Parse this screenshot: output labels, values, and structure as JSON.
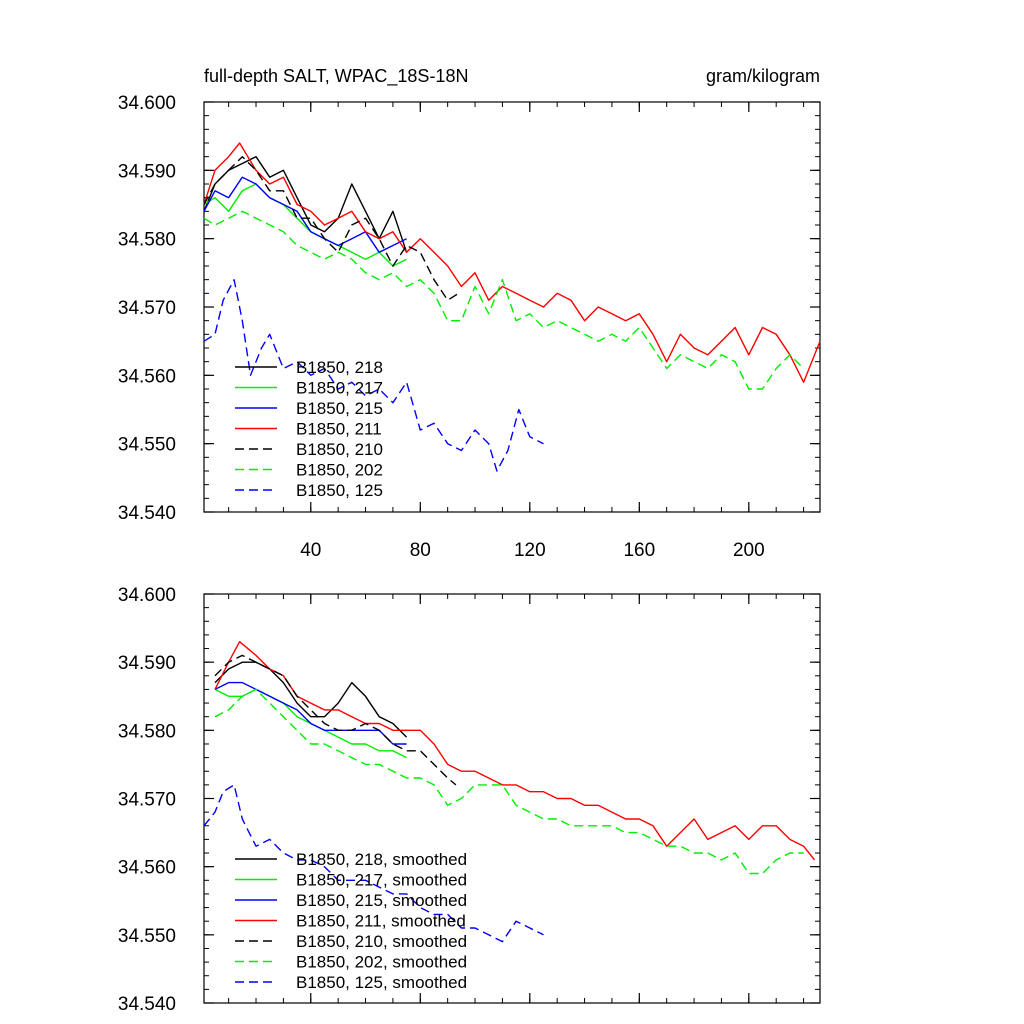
{
  "figure": {
    "title_left": "full-depth SALT, WPAC_18S-18N",
    "title_right": "gram/kilogram"
  },
  "chart_data": [
    {
      "type": "line",
      "title": "full-depth SALT, WPAC_18S-18N",
      "units": "gram/kilogram",
      "xlim": [
        1,
        226
      ],
      "ylim": [
        34.54,
        34.6
      ],
      "x_ticks": [
        40,
        80,
        120,
        160,
        200
      ],
      "x_tick_labels": [
        "40",
        "80",
        "120",
        "160",
        "200"
      ],
      "y_ticks": [
        34.54,
        34.55,
        34.56,
        34.57,
        34.58,
        34.59,
        34.6
      ],
      "y_tick_labels": [
        "34.540",
        "34.550",
        "34.560",
        "34.570",
        "34.580",
        "34.590",
        "34.600"
      ],
      "grid": false,
      "legend_position": "bottom-left",
      "series": [
        {
          "name": "B1850, 218",
          "color": "#000000",
          "dash": "solid",
          "x": [
            1,
            5,
            10,
            15,
            20,
            25,
            30,
            35,
            40,
            45,
            50,
            55,
            60,
            65,
            70,
            75
          ],
          "y": [
            34.584,
            34.588,
            34.59,
            34.591,
            34.592,
            34.589,
            34.59,
            34.586,
            34.582,
            34.581,
            34.583,
            34.588,
            34.584,
            34.58,
            34.584,
            34.578
          ]
        },
        {
          "name": "B1850, 217",
          "color": "#00ee00",
          "dash": "solid",
          "x": [
            1,
            5,
            10,
            15,
            20,
            25,
            30,
            35,
            40,
            45,
            50,
            55,
            60,
            65,
            70,
            75
          ],
          "y": [
            34.585,
            34.586,
            34.584,
            34.587,
            34.588,
            34.586,
            34.585,
            34.583,
            34.581,
            34.58,
            34.579,
            34.578,
            34.577,
            34.578,
            34.576,
            34.577
          ]
        },
        {
          "name": "B1850, 215",
          "color": "#0000ff",
          "dash": "solid",
          "x": [
            1,
            5,
            10,
            15,
            20,
            25,
            30,
            35,
            40,
            45,
            50,
            55,
            60,
            65,
            70,
            75
          ],
          "y": [
            34.584,
            34.587,
            34.586,
            34.589,
            34.588,
            34.586,
            34.585,
            34.584,
            34.581,
            34.58,
            34.579,
            34.58,
            34.581,
            34.578,
            34.579,
            34.58
          ]
        },
        {
          "name": "B1850, 211",
          "color": "#ff0000",
          "dash": "solid",
          "x": [
            1,
            5,
            10,
            14,
            20,
            25,
            30,
            35,
            40,
            45,
            50,
            55,
            60,
            65,
            70,
            75,
            80,
            85,
            90,
            95,
            100,
            105,
            110,
            115,
            120,
            125,
            130,
            135,
            140,
            145,
            150,
            155,
            160,
            165,
            170,
            175,
            180,
            185,
            190,
            195,
            200,
            205,
            210,
            215,
            220,
            226
          ],
          "y": [
            34.585,
            34.59,
            34.592,
            34.594,
            34.59,
            34.588,
            34.589,
            34.585,
            34.584,
            34.582,
            34.583,
            34.584,
            34.581,
            34.58,
            34.581,
            34.578,
            34.58,
            34.578,
            34.576,
            34.573,
            34.575,
            34.571,
            34.573,
            34.572,
            34.571,
            34.57,
            34.572,
            34.571,
            34.568,
            34.57,
            34.569,
            34.568,
            34.569,
            34.566,
            34.562,
            34.566,
            34.564,
            34.563,
            34.565,
            34.567,
            34.563,
            34.567,
            34.566,
            34.563,
            34.559,
            34.565
          ]
        },
        {
          "name": "B1850, 210",
          "color": "#000000",
          "dash": "dashed",
          "x": [
            1,
            5,
            10,
            15,
            20,
            25,
            30,
            35,
            40,
            45,
            50,
            55,
            60,
            65,
            70,
            75,
            80,
            85,
            90,
            94
          ],
          "y": [
            34.585,
            34.588,
            34.59,
            34.592,
            34.59,
            34.587,
            34.587,
            34.583,
            34.583,
            34.58,
            34.578,
            34.582,
            34.583,
            34.58,
            34.576,
            34.579,
            34.578,
            34.574,
            34.571,
            34.572
          ]
        },
        {
          "name": "B1850, 202",
          "color": "#00ee00",
          "dash": "dashed",
          "x": [
            1,
            5,
            10,
            15,
            20,
            25,
            30,
            35,
            40,
            45,
            50,
            55,
            60,
            65,
            70,
            75,
            80,
            85,
            90,
            95,
            100,
            105,
            110,
            115,
            120,
            125,
            130,
            135,
            140,
            145,
            150,
            155,
            160,
            165,
            170,
            175,
            180,
            185,
            190,
            195,
            200,
            205,
            210,
            215,
            220
          ],
          "y": [
            34.583,
            34.582,
            34.583,
            34.584,
            34.583,
            34.582,
            34.581,
            34.579,
            34.578,
            34.577,
            34.578,
            34.577,
            34.575,
            34.574,
            34.575,
            34.573,
            34.574,
            34.572,
            34.568,
            34.568,
            34.573,
            34.569,
            34.574,
            34.568,
            34.569,
            34.567,
            34.568,
            34.567,
            34.566,
            34.565,
            34.566,
            34.565,
            34.567,
            34.564,
            34.561,
            34.563,
            34.562,
            34.561,
            34.563,
            34.562,
            34.558,
            34.558,
            34.561,
            34.563,
            34.561
          ]
        },
        {
          "name": "B1850, 125",
          "color": "#0000ff",
          "dash": "dashed",
          "x": [
            1,
            5,
            8,
            12,
            15,
            18,
            22,
            25,
            30,
            35,
            40,
            45,
            50,
            55,
            60,
            65,
            70,
            75,
            80,
            85,
            90,
            95,
            100,
            105,
            108,
            112,
            116,
            120,
            125
          ],
          "y": [
            34.565,
            34.566,
            34.571,
            34.574,
            34.568,
            34.56,
            34.564,
            34.566,
            34.561,
            34.562,
            34.56,
            34.561,
            34.558,
            34.559,
            34.557,
            34.558,
            34.556,
            34.559,
            34.552,
            34.553,
            34.55,
            34.549,
            34.552,
            34.55,
            34.546,
            34.549,
            34.555,
            34.551,
            34.55
          ]
        }
      ]
    },
    {
      "type": "line",
      "xlim": [
        1,
        226
      ],
      "ylim": [
        34.54,
        34.6
      ],
      "x_ticks": [
        40,
        80,
        120,
        160,
        200
      ],
      "y_ticks": [
        34.54,
        34.55,
        34.56,
        34.57,
        34.58,
        34.59,
        34.6
      ],
      "y_tick_labels": [
        "34.540",
        "34.550",
        "34.560",
        "34.570",
        "34.580",
        "34.590",
        "34.600"
      ],
      "grid": false,
      "legend_position": "bottom-left",
      "series": [
        {
          "name": "B1850, 218, smoothed",
          "color": "#000000",
          "dash": "solid",
          "x": [
            5,
            10,
            15,
            20,
            25,
            30,
            35,
            40,
            45,
            50,
            55,
            60,
            65,
            70,
            75
          ],
          "y": [
            34.587,
            34.589,
            34.59,
            34.59,
            34.589,
            34.587,
            34.584,
            34.582,
            34.582,
            34.584,
            34.587,
            34.585,
            34.582,
            34.581,
            34.579
          ]
        },
        {
          "name": "B1850, 217, smoothed",
          "color": "#00ee00",
          "dash": "solid",
          "x": [
            5,
            10,
            15,
            20,
            25,
            30,
            35,
            40,
            45,
            50,
            55,
            60,
            65,
            70,
            75
          ],
          "y": [
            34.586,
            34.585,
            34.585,
            34.586,
            34.585,
            34.584,
            34.582,
            34.581,
            34.58,
            34.579,
            34.578,
            34.578,
            34.577,
            34.577,
            34.576
          ]
        },
        {
          "name": "B1850, 215, smoothed",
          "color": "#0000ff",
          "dash": "solid",
          "x": [
            5,
            10,
            15,
            20,
            25,
            30,
            35,
            40,
            45,
            50,
            55,
            60,
            65,
            70,
            75
          ],
          "y": [
            34.586,
            34.587,
            34.587,
            34.586,
            34.585,
            34.584,
            34.583,
            34.581,
            34.58,
            34.58,
            34.58,
            34.58,
            34.58,
            34.578,
            34.578
          ]
        },
        {
          "name": "B1850, 211, smoothed",
          "color": "#ff0000",
          "dash": "solid",
          "x": [
            5,
            10,
            14,
            20,
            25,
            30,
            35,
            40,
            45,
            50,
            55,
            60,
            65,
            70,
            75,
            80,
            85,
            90,
            95,
            100,
            105,
            110,
            115,
            120,
            125,
            130,
            135,
            140,
            145,
            150,
            155,
            160,
            165,
            170,
            175,
            180,
            185,
            190,
            195,
            200,
            205,
            210,
            215,
            220,
            224
          ],
          "y": [
            34.586,
            34.59,
            34.593,
            34.591,
            34.589,
            34.588,
            34.585,
            34.584,
            34.583,
            34.583,
            34.582,
            34.581,
            34.581,
            34.58,
            34.58,
            34.58,
            34.578,
            34.575,
            34.574,
            34.574,
            34.573,
            34.572,
            34.572,
            34.571,
            34.571,
            34.57,
            34.57,
            34.569,
            34.569,
            34.568,
            34.567,
            34.567,
            34.566,
            34.563,
            34.565,
            34.567,
            34.564,
            34.565,
            34.566,
            34.564,
            34.566,
            34.566,
            34.564,
            34.563,
            34.561
          ]
        },
        {
          "name": "B1850, 210, smoothed",
          "color": "#000000",
          "dash": "dashed",
          "x": [
            5,
            10,
            15,
            20,
            25,
            30,
            35,
            40,
            45,
            50,
            55,
            60,
            65,
            70,
            75,
            80,
            85,
            90,
            93
          ],
          "y": [
            34.588,
            34.59,
            34.591,
            34.59,
            34.589,
            34.588,
            34.585,
            34.583,
            34.581,
            34.58,
            34.58,
            34.581,
            34.58,
            34.578,
            34.577,
            34.577,
            34.575,
            34.573,
            34.572
          ]
        },
        {
          "name": "B1850, 202, smoothed",
          "color": "#00ee00",
          "dash": "dashed",
          "x": [
            5,
            10,
            15,
            20,
            25,
            30,
            35,
            40,
            45,
            50,
            55,
            60,
            65,
            70,
            75,
            80,
            85,
            90,
            95,
            100,
            105,
            110,
            115,
            120,
            125,
            130,
            135,
            140,
            145,
            150,
            155,
            160,
            165,
            170,
            175,
            180,
            185,
            190,
            195,
            200,
            205,
            210,
            215,
            220
          ],
          "y": [
            34.582,
            34.583,
            34.585,
            34.586,
            34.584,
            34.582,
            34.58,
            34.578,
            34.578,
            34.577,
            34.576,
            34.575,
            34.575,
            34.574,
            34.573,
            34.573,
            34.572,
            34.569,
            34.57,
            34.572,
            34.572,
            34.572,
            34.569,
            34.568,
            34.567,
            34.567,
            34.566,
            34.566,
            34.566,
            34.566,
            34.565,
            34.565,
            34.564,
            34.563,
            34.563,
            34.562,
            34.562,
            34.561,
            34.562,
            34.559,
            34.559,
            34.561,
            34.562,
            34.562
          ]
        },
        {
          "name": "B1850, 125, smoothed",
          "color": "#0000ff",
          "dash": "dashed",
          "x": [
            1,
            5,
            8,
            12,
            15,
            20,
            25,
            30,
            35,
            40,
            45,
            50,
            55,
            60,
            65,
            70,
            75,
            80,
            85,
            90,
            95,
            100,
            105,
            110,
            115,
            120,
            125
          ],
          "y": [
            34.566,
            34.568,
            34.571,
            34.572,
            34.567,
            34.563,
            34.564,
            34.562,
            34.561,
            34.561,
            34.56,
            34.558,
            34.558,
            34.558,
            34.557,
            34.556,
            34.556,
            34.554,
            34.553,
            34.553,
            34.551,
            34.551,
            34.55,
            34.549,
            34.552,
            34.551,
            34.55
          ]
        }
      ]
    }
  ]
}
